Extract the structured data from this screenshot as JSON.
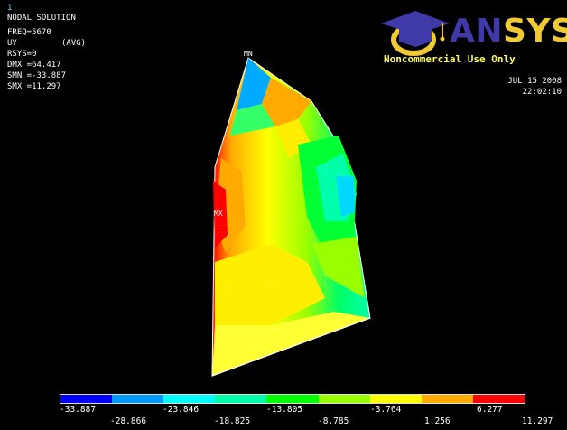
{
  "window": {
    "number": "1"
  },
  "info": {
    "title": "NODAL SOLUTION",
    "freq": "FREQ=5670",
    "component": "UY",
    "avg": "(AVG)",
    "rsys": "RSYS=0",
    "dmx": "DMX =64.417",
    "smn": "SMN =-33.887",
    "smx": "SMX =11.297"
  },
  "logo": {
    "brand_part1": "AN",
    "brand_part2": "SYS",
    "colors": {
      "cap": "#3f3aa8",
      "ring": "#f1ca33"
    }
  },
  "license_notice": "Noncommercial Use Only",
  "date": "JUL 15 2008",
  "time": "22:02:10",
  "markers": {
    "min": "MN",
    "max": "MX"
  },
  "colorbar": {
    "colors": [
      "#0000ff",
      "#0099ff",
      "#00ffff",
      "#00ffaa",
      "#00ff00",
      "#99ff00",
      "#ffff00",
      "#ffaa00",
      "#ff0000"
    ],
    "labels_top": [
      "-33.887",
      "-23.846",
      "-13.805",
      "-3.764",
      "6.277"
    ],
    "labels_bottom": [
      "-28.866",
      "-18.825",
      "-8.785",
      "1.256",
      "11.297"
    ]
  }
}
